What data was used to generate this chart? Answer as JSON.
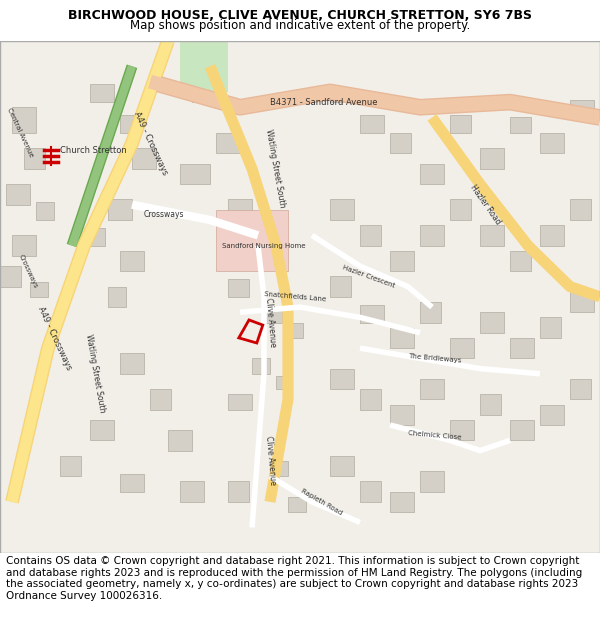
{
  "title": "BIRCHWOOD HOUSE, CLIVE AVENUE, CHURCH STRETTON, SY6 7BS",
  "subtitle": "Map shows position and indicative extent of the property.",
  "footer": "Contains OS data © Crown copyright and database right 2021. This information is subject to Crown copyright and database rights 2023 and is reproduced with the permission of HM Land Registry. The polygons (including the associated geometry, namely x, y co-ordinates) are subject to Crown copyright and database rights 2023 Ordnance Survey 100026316.",
  "title_fontsize": 9,
  "subtitle_fontsize": 8.5,
  "footer_fontsize": 7.5,
  "fig_width": 6.0,
  "fig_height": 6.25,
  "map_bg": "#f2efe9",
  "building_color": "#d4d0c8",
  "building_edge": "#b0aca0",
  "road_a49_color": "#f7d478",
  "road_b4371_color": "#f0c8a8",
  "road_b4371_edge": "#e8b898",
  "road_white": "#ffffff",
  "road_hazler_color": "#f7d478",
  "rail_green_outer": "#6aa84f",
  "rail_green_inner": "#93c47d",
  "nursing_home_color": "#f0d0c8",
  "nursing_home_edge": "#d0a898",
  "green_area_color": "#c8e6c0",
  "red_color": "#cc0000",
  "label_fontsize": 5.5,
  "label_color": "#333333"
}
